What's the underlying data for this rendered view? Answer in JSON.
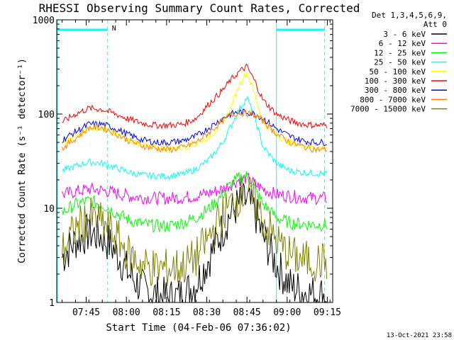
{
  "chart_data": {
    "type": "line",
    "title": "RHESSI Observing Summary Count Rates, Corrected",
    "xlabel": "Start Time (04-Feb-06 07:36:02)",
    "ylabel": "Corrected Count Rate (s⁻¹ detector⁻¹)",
    "y_scale": "log",
    "ylim": [
      1,
      1000
    ],
    "xlim_minutes": [
      -2,
      101
    ],
    "x_tick_labels": [
      "07:45",
      "08:00",
      "08:15",
      "08:30",
      "08:45",
      "09:00",
      "09:15"
    ],
    "x_tick_minutes": [
      9,
      24,
      39,
      54,
      69,
      84,
      99
    ],
    "y_tick_labels": [
      "1",
      "10",
      "100",
      "1000"
    ],
    "y_tick_values": [
      1,
      10,
      100,
      1000
    ],
    "legend_header": [
      "Det 1,3,4,5,6,9,",
      "Att 0"
    ],
    "legend_placement": "right",
    "timestamp": "13-Oct-2021 23:58",
    "flag_label": "N",
    "night_bars": [
      [
        -2,
        17
      ],
      [
        80,
        98
      ]
    ],
    "dashed_lines_minutes": [
      17,
      98
    ],
    "solid_lines_minutes": [
      -2,
      80
    ],
    "series": [
      {
        "name": "3 - 6 keV",
        "color": "#000000",
        "x": [
          0,
          5,
          10,
          15,
          20,
          25,
          30,
          35,
          40,
          45,
          50,
          55,
          60,
          63,
          66,
          69,
          72,
          75,
          80,
          85,
          90,
          95,
          99
        ],
        "y": [
          3,
          4.5,
          5.5,
          5,
          3.5,
          2,
          1.4,
          1.2,
          1.1,
          1.2,
          1.6,
          3,
          6,
          9,
          11,
          12,
          9,
          5,
          2.5,
          1.5,
          1.3,
          1.2,
          1.2
        ]
      },
      {
        "name": "6 - 12 keV",
        "color": "#ff00ff",
        "x": [
          0,
          5,
          10,
          15,
          20,
          25,
          30,
          35,
          40,
          45,
          50,
          55,
          60,
          63,
          66,
          69,
          72,
          75,
          80,
          85,
          90,
          95,
          99
        ],
        "y": [
          14,
          15,
          16,
          15.5,
          14.5,
          13.5,
          13,
          12.8,
          12.8,
          13,
          13.5,
          14.5,
          16,
          18,
          20,
          21,
          18,
          16,
          14,
          13.5,
          13,
          12.8,
          12.8
        ]
      },
      {
        "name": "12 - 25 keV",
        "color": "#00ff00",
        "x": [
          0,
          5,
          10,
          15,
          20,
          25,
          30,
          35,
          40,
          45,
          50,
          55,
          60,
          63,
          66,
          69,
          72,
          75,
          80,
          85,
          90,
          95,
          99
        ],
        "y": [
          9,
          11,
          12,
          11,
          9,
          7.5,
          6.8,
          6.5,
          6.5,
          7,
          8,
          10,
          14,
          18,
          21,
          22,
          16,
          11,
          8,
          7,
          6.8,
          6.7,
          6.7
        ]
      },
      {
        "name": "25 - 50 keV",
        "color": "#00ffff",
        "x": [
          0,
          5,
          10,
          15,
          20,
          25,
          30,
          35,
          40,
          45,
          50,
          55,
          60,
          63,
          66,
          69,
          72,
          75,
          80,
          85,
          90,
          95,
          99
        ],
        "y": [
          25,
          28,
          31,
          30,
          27,
          24,
          22.5,
          22,
          22,
          23,
          26,
          33,
          50,
          75,
          110,
          150,
          90,
          45,
          30,
          25,
          24,
          23.5,
          23.5
        ]
      },
      {
        "name": "50 - 100 keV",
        "color": "#ffff00",
        "x": [
          0,
          5,
          10,
          15,
          20,
          25,
          30,
          35,
          40,
          45,
          50,
          55,
          60,
          63,
          66,
          69,
          72,
          75,
          80,
          85,
          90,
          95,
          99
        ],
        "y": [
          47,
          58,
          70,
          70,
          62,
          53,
          47,
          44,
          43,
          44,
          48,
          58,
          80,
          120,
          200,
          280,
          160,
          80,
          60,
          50,
          46,
          44,
          44
        ]
      },
      {
        "name": "100 - 300 keV",
        "color": "#ff0000",
        "x": [
          0,
          5,
          10,
          15,
          20,
          25,
          30,
          35,
          40,
          45,
          50,
          55,
          60,
          63,
          66,
          69,
          72,
          75,
          80,
          85,
          90,
          95,
          99
        ],
        "y": [
          82,
          100,
          115,
          112,
          100,
          88,
          80,
          76,
          76,
          78,
          90,
          130,
          180,
          230,
          280,
          320,
          220,
          140,
          100,
          85,
          78,
          76,
          76
        ]
      },
      {
        "name": "300 - 800 keV",
        "color": "#0000ff",
        "x": [
          0,
          5,
          10,
          15,
          20,
          25,
          30,
          35,
          40,
          45,
          50,
          55,
          60,
          63,
          66,
          69,
          72,
          75,
          80,
          85,
          90,
          95,
          99
        ],
        "y": [
          53,
          65,
          78,
          78,
          70,
          60,
          53,
          50,
          50,
          52,
          58,
          72,
          90,
          100,
          105,
          105,
          100,
          90,
          70,
          58,
          52,
          50,
          50
        ]
      },
      {
        "name": "800 - 7000 keV",
        "color": "#ff8000",
        "x": [
          0,
          5,
          10,
          15,
          20,
          25,
          30,
          35,
          40,
          45,
          50,
          55,
          60,
          63,
          66,
          69,
          72,
          75,
          80,
          85,
          90,
          95,
          99
        ],
        "y": [
          43,
          55,
          72,
          72,
          62,
          52,
          46,
          43,
          42,
          44,
          50,
          64,
          85,
          98,
          103,
          102,
          97,
          85,
          62,
          50,
          45,
          42,
          42
        ]
      },
      {
        "name": "7000 - 15000 keV",
        "color": "#808000",
        "x": [
          0,
          5,
          10,
          15,
          20,
          25,
          30,
          35,
          40,
          45,
          50,
          55,
          60,
          63,
          66,
          69,
          72,
          75,
          80,
          85,
          90,
          95,
          99
        ],
        "y": [
          3.5,
          6,
          8,
          7,
          5,
          3.2,
          2.5,
          2.3,
          2.3,
          2.4,
          3,
          5,
          8.5,
          11,
          13.5,
          14.5,
          12,
          7.5,
          4.5,
          3.2,
          2.8,
          2.7,
          2.7
        ]
      }
    ]
  }
}
